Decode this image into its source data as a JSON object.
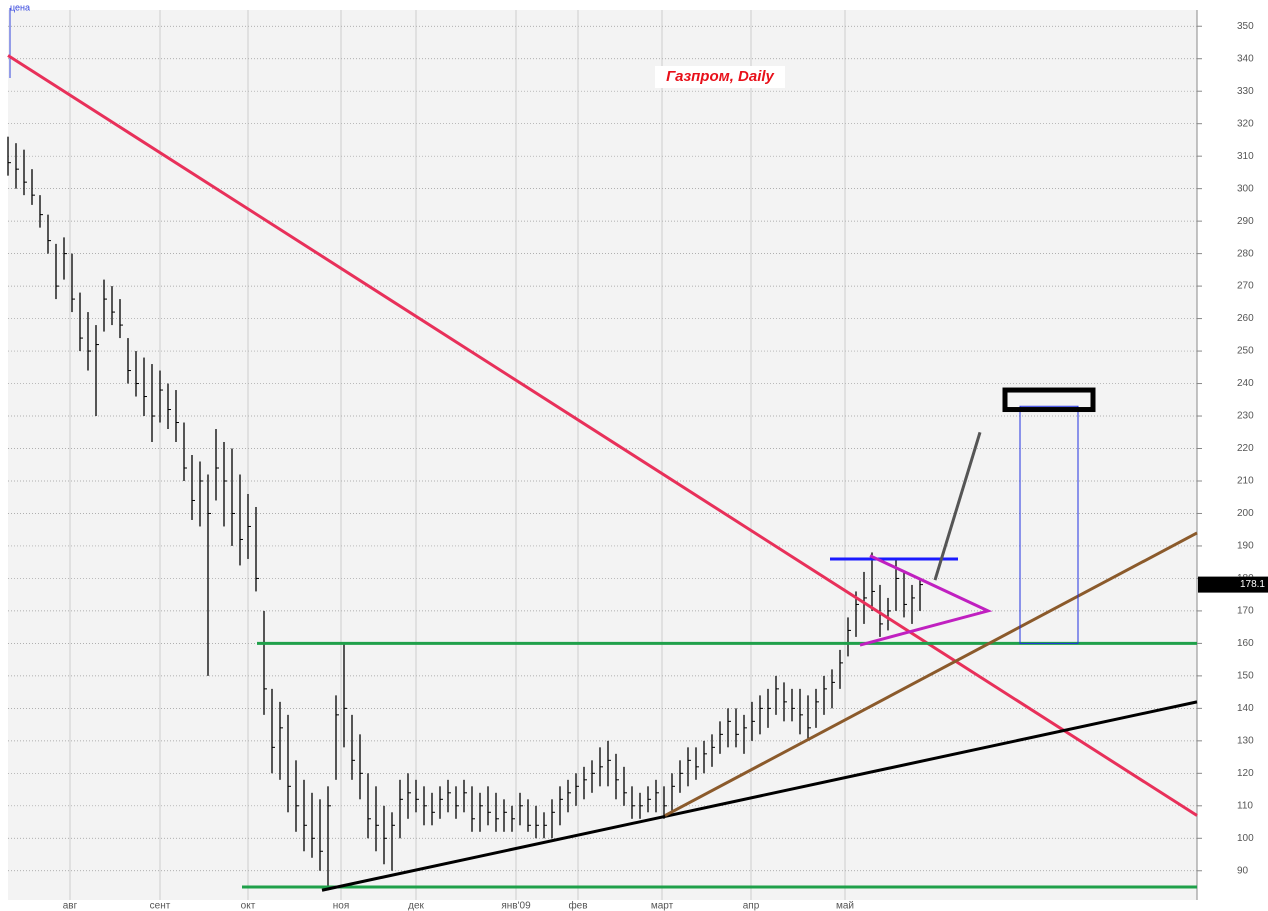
{
  "chart_data": {
    "type": "ohlc",
    "title": "Газпром, Daily",
    "y_label": "цена",
    "x": [
      0,
      2,
      4,
      6,
      8,
      10,
      12,
      14,
      16,
      18,
      20,
      22,
      24,
      26,
      28,
      30,
      32,
      34,
      36,
      38,
      40,
      42,
      44,
      46,
      48,
      50,
      52,
      54,
      56,
      58,
      60,
      62,
      64,
      66,
      68,
      70,
      72,
      74,
      76,
      78,
      80,
      82,
      84,
      86,
      88,
      90,
      92,
      94,
      96,
      98,
      100,
      102,
      104,
      106,
      108,
      110,
      112,
      114,
      116,
      118,
      120,
      122,
      124,
      126,
      128,
      130,
      132,
      134,
      136,
      138,
      140,
      142,
      144,
      146,
      148,
      150,
      152,
      154,
      156,
      158,
      160,
      162,
      164,
      166,
      168,
      170,
      172,
      174,
      176,
      178,
      180,
      182,
      184,
      186,
      188,
      190,
      192,
      194,
      196,
      198,
      200,
      202,
      204,
      206,
      208,
      210,
      212,
      214,
      216,
      218,
      220,
      222,
      224,
      226,
      228
    ],
    "high": [
      316,
      314,
      312,
      306,
      298,
      292,
      283,
      285,
      280,
      268,
      262,
      258,
      272,
      270,
      266,
      254,
      250,
      248,
      246,
      244,
      240,
      238,
      228,
      218,
      216,
      212,
      226,
      222,
      220,
      212,
      206,
      202,
      170,
      146,
      142,
      138,
      124,
      118,
      114,
      112,
      116,
      144,
      160,
      138,
      132,
      120,
      116,
      110,
      108,
      118,
      120,
      118,
      116,
      114,
      116,
      118,
      116,
      118,
      116,
      114,
      116,
      114,
      112,
      110,
      114,
      112,
      110,
      108,
      112,
      116,
      118,
      120,
      122,
      124,
      128,
      130,
      126,
      122,
      116,
      114,
      116,
      118,
      116,
      120,
      124,
      128,
      128,
      130,
      132,
      136,
      140,
      140,
      138,
      142,
      144,
      146,
      150,
      148,
      146,
      146,
      144,
      146,
      150,
      152,
      158,
      168,
      176,
      182,
      188,
      178,
      174,
      186,
      182,
      178,
      180
    ],
    "low": [
      304,
      300,
      298,
      295,
      288,
      280,
      266,
      272,
      262,
      250,
      244,
      230,
      256,
      258,
      254,
      240,
      236,
      230,
      222,
      228,
      226,
      222,
      210,
      198,
      196,
      150,
      204,
      196,
      190,
      184,
      186,
      176,
      138,
      120,
      118,
      108,
      102,
      96,
      94,
      90,
      84,
      118,
      128,
      118,
      112,
      100,
      96,
      92,
      90,
      100,
      106,
      108,
      104,
      104,
      106,
      108,
      106,
      108,
      102,
      102,
      104,
      102,
      102,
      102,
      104,
      102,
      100,
      100,
      100,
      104,
      108,
      110,
      112,
      114,
      116,
      116,
      112,
      110,
      106,
      106,
      108,
      108,
      106,
      108,
      114,
      116,
      118,
      120,
      122,
      126,
      128,
      128,
      126,
      130,
      132,
      134,
      138,
      136,
      136,
      132,
      130,
      134,
      138,
      140,
      146,
      156,
      162,
      166,
      170,
      162,
      164,
      170,
      168,
      166,
      170
    ],
    "close": [
      308,
      306,
      302,
      298,
      292,
      284,
      270,
      280,
      266,
      254,
      250,
      252,
      266,
      262,
      258,
      244,
      240,
      236,
      230,
      238,
      232,
      228,
      214,
      204,
      210,
      200,
      214,
      210,
      200,
      192,
      196,
      180,
      146,
      128,
      134,
      116,
      110,
      104,
      100,
      96,
      110,
      138,
      140,
      124,
      120,
      106,
      104,
      100,
      104,
      112,
      114,
      112,
      110,
      108,
      112,
      114,
      110,
      114,
      106,
      110,
      108,
      106,
      108,
      106,
      110,
      104,
      104,
      104,
      108,
      112,
      114,
      116,
      118,
      120,
      122,
      124,
      118,
      114,
      110,
      110,
      112,
      114,
      110,
      116,
      120,
      124,
      122,
      126,
      128,
      132,
      136,
      132,
      134,
      136,
      140,
      140,
      146,
      142,
      140,
      138,
      134,
      142,
      146,
      148,
      154,
      164,
      172,
      174,
      176,
      166,
      170,
      180,
      172,
      174,
      178.1
    ],
    "color": "#000000",
    "xlim": [
      0,
      297.25
    ],
    "ylim": [
      81,
      355
    ],
    "yticks": [
      90,
      100,
      110,
      120,
      130,
      140,
      150,
      160,
      170,
      180,
      190,
      200,
      210,
      220,
      230,
      240,
      250,
      260,
      270,
      280,
      290,
      300,
      310,
      320,
      330,
      340,
      350
    ],
    "xticks": [
      {
        "value": 15.5,
        "label": "авг"
      },
      {
        "value": 38,
        "label": "сент"
      },
      {
        "value": 60,
        "label": "окт"
      },
      {
        "value": 83.25,
        "label": "ноя"
      },
      {
        "value": 102,
        "label": "дек"
      },
      {
        "value": 127,
        "label": "янв'09"
      },
      {
        "value": 142.5,
        "label": "фев"
      },
      {
        "value": 163.5,
        "label": "март"
      },
      {
        "value": 185.75,
        "label": "апр"
      },
      {
        "value": 209.25,
        "label": "май"
      }
    ],
    "grid": true,
    "lines": [
      {
        "color": "#e8305a",
        "points": [
          [
            0,
            341
          ],
          [
            297.25,
            107
          ]
        ]
      },
      {
        "color": "#1fa04a",
        "points": [
          [
            62.25,
            160
          ],
          [
            297.25,
            160
          ]
        ]
      },
      {
        "color": "#1fa04a",
        "points": [
          [
            58.5,
            85
          ],
          [
            297.25,
            85
          ]
        ]
      },
      {
        "color": "#000000",
        "points": [
          [
            78.5,
            84
          ],
          [
            297.25,
            142
          ]
        ]
      },
      {
        "color": "#8b5a2b",
        "points": [
          [
            164.25,
            107
          ],
          [
            297.25,
            194
          ]
        ]
      },
      {
        "color": "#1a1aff",
        "points": [
          [
            205.5,
            186
          ],
          [
            237.5,
            186
          ]
        ]
      },
      {
        "color": "#c020c0",
        "points": [
          [
            215.5,
            187
          ],
          [
            245,
            170
          ],
          [
            213,
            159.5
          ]
        ]
      },
      {
        "color": "#555555",
        "points": [
          [
            231.75,
            179.5
          ],
          [
            243,
            225
          ]
        ]
      }
    ],
    "rects": [
      {
        "color": "#2030e0",
        "x": [
          253,
          267.5
        ],
        "y": [
          160,
          233
        ]
      },
      {
        "color": "#000000",
        "x": [
          249.25,
          271.25
        ],
        "y": [
          232,
          238
        ]
      }
    ]
  }
}
